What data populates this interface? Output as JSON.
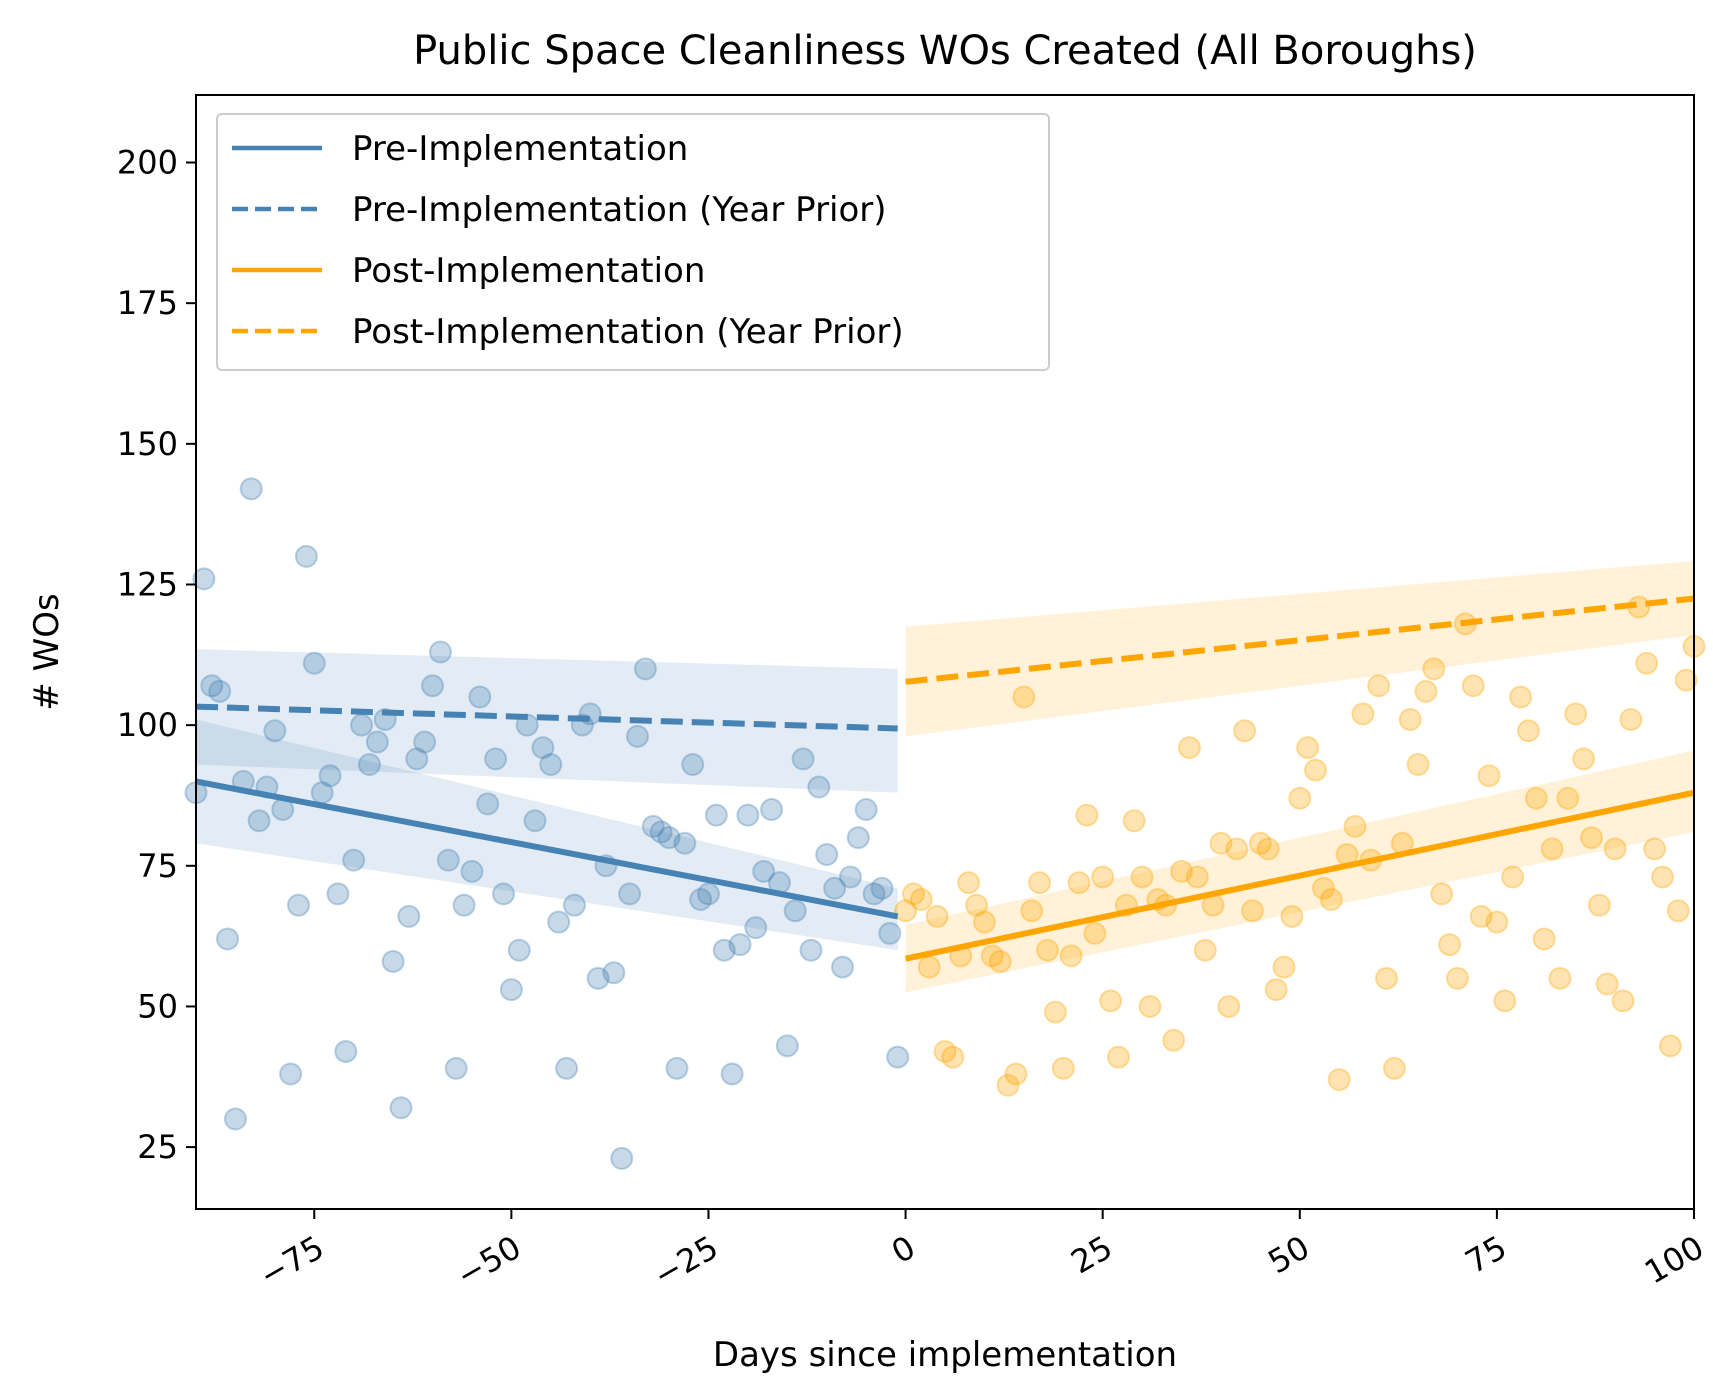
{
  "chart_data": {
    "type": "scatter",
    "title": "Public Space Cleanliness WOs Created (All Boroughs)",
    "xlabel": "Days since implementation",
    "ylabel": "# WOs",
    "xlim": [
      -90,
      100
    ],
    "ylim": [
      14,
      212
    ],
    "x_ticks": [
      -75,
      -50,
      -25,
      0,
      25,
      50,
      75,
      100
    ],
    "x_tick_labels": [
      "−75",
      "−50",
      "−25",
      "0",
      "25",
      "50",
      "75",
      "100"
    ],
    "y_ticks": [
      25,
      50,
      75,
      100,
      125,
      150,
      175,
      200
    ],
    "y_tick_labels": [
      "25",
      "50",
      "75",
      "100",
      "125",
      "150",
      "175",
      "200"
    ],
    "grid": false,
    "legend_position": "top-left",
    "colors": {
      "pre": "#4682b4",
      "post": "#ffa500"
    },
    "scatter": {
      "pre": {
        "x": [
          -90,
          -89,
          -88,
          -87,
          -86,
          -85,
          -84,
          -83,
          -82,
          -81,
          -80,
          -79,
          -78,
          -77,
          -76,
          -75,
          -74,
          -73,
          -72,
          -71,
          -70,
          -69,
          -68,
          -67,
          -66,
          -65,
          -64,
          -63,
          -62,
          -61,
          -60,
          -59,
          -58,
          -57,
          -56,
          -55,
          -54,
          -53,
          -52,
          -51,
          -50,
          -49,
          -48,
          -47,
          -46,
          -45,
          -44,
          -43,
          -42,
          -41,
          -40,
          -39,
          -38,
          -37,
          -36,
          -35,
          -34,
          -33,
          -32,
          -31,
          -30,
          -29,
          -28,
          -27,
          -26,
          -25,
          -24,
          -23,
          -22,
          -21,
          -20,
          -19,
          -18,
          -17,
          -16,
          -15,
          -14,
          -13,
          -12,
          -11,
          -10,
          -9,
          -8,
          -7,
          -6,
          -5,
          -4,
          -3,
          -2,
          -1
        ],
        "y": [
          88,
          126,
          107,
          106,
          62,
          30,
          90,
          142,
          83,
          89,
          99,
          85,
          38,
          68,
          130,
          111,
          88,
          91,
          70,
          42,
          76,
          100,
          93,
          97,
          101,
          58,
          32,
          66,
          94,
          97,
          107,
          113,
          76,
          39,
          68,
          74,
          105,
          86,
          94,
          70,
          53,
          60,
          100,
          83,
          96,
          93,
          65,
          39,
          68,
          100,
          102,
          55,
          75,
          56,
          23,
          70,
          98,
          110,
          82,
          81,
          80,
          39,
          79,
          93,
          69,
          70,
          84,
          60,
          38,
          61,
          84,
          64,
          74,
          85,
          72,
          43,
          67,
          94,
          60,
          89,
          77,
          71,
          57,
          73,
          80,
          85,
          70,
          71,
          63,
          41
        ]
      },
      "post": {
        "x": [
          0,
          1,
          2,
          3,
          4,
          5,
          6,
          7,
          8,
          9,
          10,
          11,
          12,
          13,
          14,
          15,
          16,
          17,
          18,
          19,
          20,
          21,
          22,
          23,
          24,
          25,
          26,
          27,
          28,
          29,
          30,
          31,
          32,
          33,
          34,
          35,
          36,
          37,
          38,
          39,
          40,
          41,
          42,
          43,
          44,
          45,
          46,
          47,
          48,
          49,
          50,
          51,
          52,
          53,
          54,
          55,
          56,
          57,
          58,
          59,
          60,
          61,
          62,
          63,
          64,
          65,
          66,
          67,
          68,
          69,
          70,
          71,
          72,
          73,
          74,
          75,
          76,
          77,
          78,
          79,
          80,
          81,
          82,
          83,
          84,
          85,
          86,
          87,
          88,
          89,
          90,
          91,
          92,
          93,
          94,
          95,
          96,
          97,
          98,
          99,
          100
        ],
        "y": [
          67,
          70,
          69,
          57,
          66,
          42,
          41,
          59,
          72,
          68,
          65,
          59,
          58,
          36,
          38,
          105,
          67,
          72,
          60,
          49,
          39,
          59,
          72,
          84,
          63,
          73,
          51,
          41,
          68,
          83,
          73,
          50,
          69,
          68,
          44,
          74,
          96,
          73,
          60,
          68,
          79,
          50,
          78,
          99,
          67,
          79,
          78,
          53,
          57,
          66,
          87,
          96,
          92,
          71,
          69,
          37,
          77,
          82,
          102,
          76,
          107,
          55,
          39,
          79,
          101,
          93,
          106,
          110,
          70,
          61,
          55,
          118,
          107,
          66,
          91,
          65,
          51,
          73,
          105,
          99,
          87,
          62,
          78,
          55,
          87,
          102,
          94,
          80,
          68,
          54,
          78,
          51,
          101,
          121,
          111,
          78,
          73,
          43,
          67,
          108,
          114
        ]
      }
    },
    "series": [
      {
        "name": "Pre-Implementation",
        "style": "solid",
        "color": "#4682b4",
        "x": [
          -90,
          -1
        ],
        "y": [
          90,
          66
        ],
        "band_lower": [
          79,
          60
        ],
        "band_upper": [
          101,
          71
        ]
      },
      {
        "name": "Pre-Implementation (Year Prior)",
        "style": "dashed",
        "color": "#4682b4",
        "x": [
          -90,
          -1
        ],
        "y": [
          103.3,
          99.4
        ],
        "band_lower": [
          93,
          88
        ],
        "band_upper": [
          113.5,
          110
        ]
      },
      {
        "name": "Post-Implementation",
        "style": "solid",
        "color": "#ffa500",
        "x": [
          0,
          100
        ],
        "y": [
          58.5,
          88
        ],
        "band_lower": [
          52.5,
          81
        ],
        "band_upper": [
          64.5,
          95.5
        ]
      },
      {
        "name": "Post-Implementation (Year Prior)",
        "style": "dashed",
        "color": "#ffa500",
        "x": [
          0,
          100
        ],
        "y": [
          107.7,
          122.5
        ],
        "band_lower": [
          98,
          116
        ],
        "band_upper": [
          117.5,
          129.2
        ]
      }
    ]
  }
}
